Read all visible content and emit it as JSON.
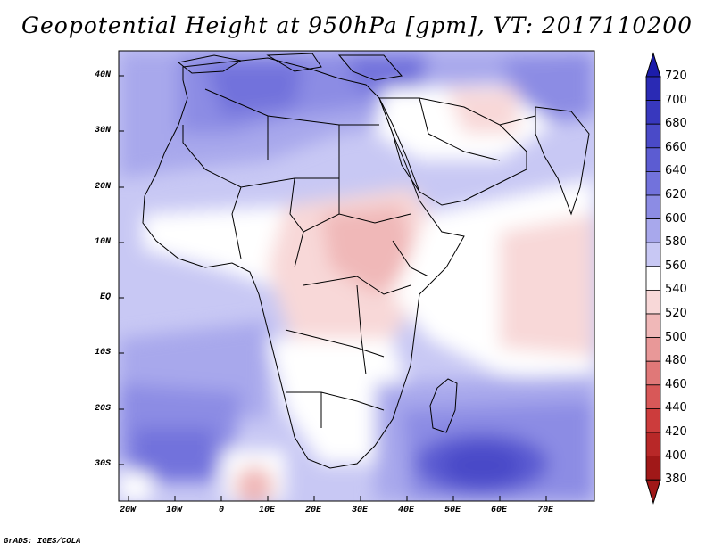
{
  "title": "Geopotential Height at 950hPa [gpm], VT: 2017110200",
  "credit": "GrADS: IGES/COLA",
  "lat_labels": [
    "40N",
    "30N",
    "20N",
    "10N",
    "EQ",
    "10S",
    "20S",
    "30S"
  ],
  "lon_labels": [
    "20W",
    "10W",
    "0",
    "10E",
    "20E",
    "30E",
    "40E",
    "50E",
    "60E",
    "70E"
  ],
  "colorbar": {
    "labels": [
      "720",
      "700",
      "680",
      "660",
      "640",
      "620",
      "600",
      "580",
      "560",
      "540",
      "520",
      "500",
      "480",
      "460",
      "440",
      "420",
      "400",
      "380"
    ],
    "colors": [
      "#1c1caa",
      "#2a2ab4",
      "#3838be",
      "#4a4ac8",
      "#5c5cd2",
      "#7272dc",
      "#8c8ce4",
      "#a8a8ec",
      "#c8c8f4",
      "#ffffff",
      "#f8d8d8",
      "#f0b8b8",
      "#e89898",
      "#e07878",
      "#d85858",
      "#cc3c3c",
      "#b82828",
      "#a01818"
    ]
  },
  "chart_data": {
    "type": "heatmap",
    "title": "Geopotential Height at 950hPa [gpm], VT: 2017110200",
    "variable": "Geopotential Height at 950hPa",
    "units": "gpm",
    "valid_time": "2017110200",
    "lon_range": [
      -22,
      80
    ],
    "lat_range": [
      -37,
      45
    ],
    "lon_ticks": [
      "20W",
      "10W",
      "0",
      "10E",
      "20E",
      "30E",
      "40E",
      "50E",
      "60E",
      "70E"
    ],
    "lat_ticks": [
      "40N",
      "30N",
      "20N",
      "10N",
      "EQ",
      "10S",
      "20S",
      "30S"
    ],
    "color_levels": [
      380,
      400,
      420,
      440,
      460,
      480,
      500,
      520,
      540,
      560,
      580,
      600,
      620,
      640,
      660,
      680,
      700,
      720
    ],
    "features": [
      {
        "region": "Southern Indian Ocean high (around 55E, 30S)",
        "approx_value": 640
      },
      {
        "region": "Central/East Africa low (around 30E, 10N to 10S)",
        "approx_value": 520
      },
      {
        "region": "Mediterranean / North Africa",
        "approx_value": 600
      },
      {
        "region": "Southeast Atlantic near 5E, 35S",
        "approx_value": 500
      },
      {
        "region": "Arabian Sea / Northwest Indian Ocean",
        "approx_value": 540
      }
    ]
  }
}
